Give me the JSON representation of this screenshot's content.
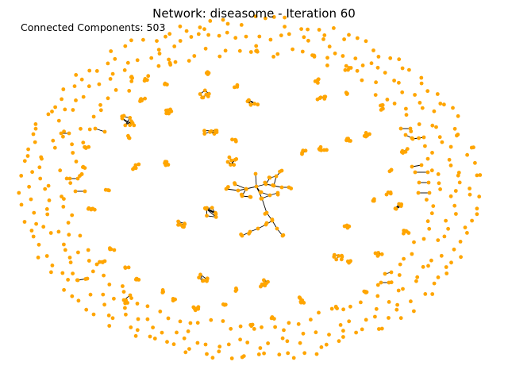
{
  "figure": {
    "title": "Network: diseasome - Iteration 60",
    "components_label": "Connected Components: 503"
  },
  "graph": {
    "node_color": "#ffa500",
    "edge_color": "#000000"
  }
}
